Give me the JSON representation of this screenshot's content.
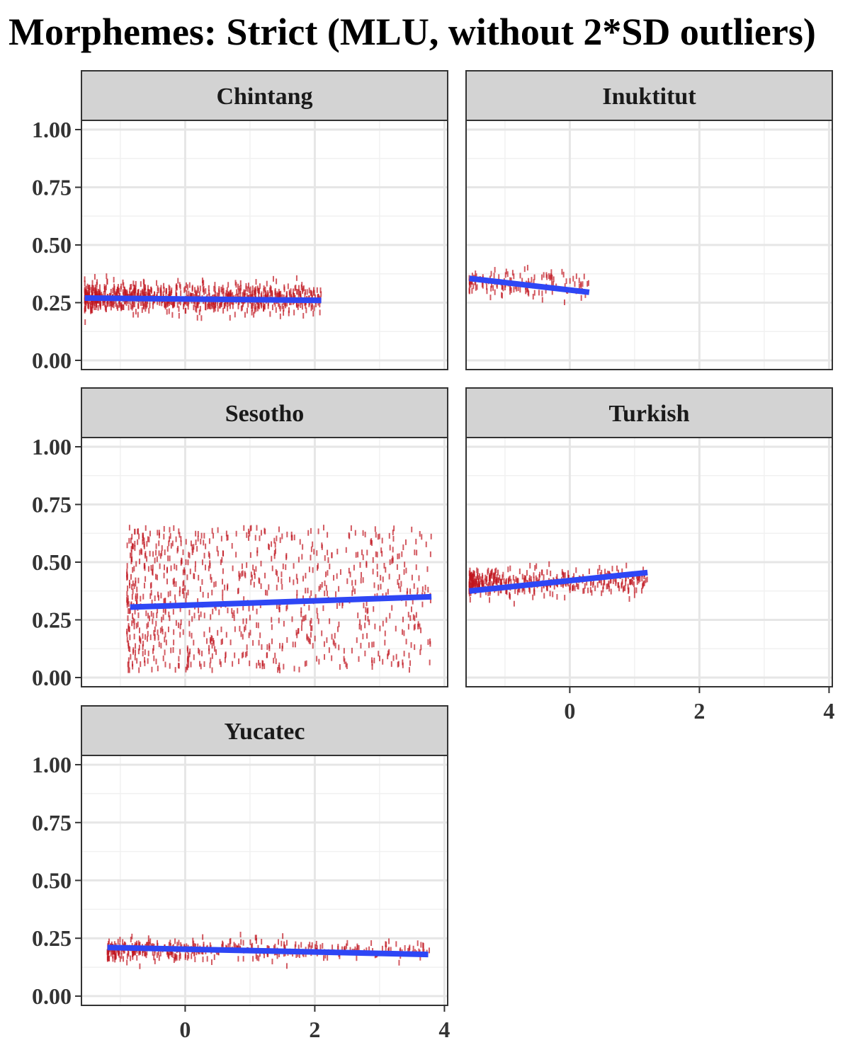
{
  "chart_title": "Morphemes: Strict (MLU, without 2*SD outliers)",
  "colors": {
    "point": "#c0151f",
    "fit": "#2e46f5",
    "strip_fill": "#d3d3d3",
    "border": "#333333",
    "grid_major": "#e6e6e6",
    "grid_minor": "#f1f1f1"
  },
  "chart_data": {
    "type": "scatter",
    "xlim": [
      -1.6,
      4.05
    ],
    "ylim": [
      -0.04,
      1.04
    ],
    "x_ticks": [
      0,
      2,
      4
    ],
    "y_ticks": [
      0.0,
      0.25,
      0.5,
      0.75,
      1.0
    ],
    "y_tick_labels": [
      "0.00",
      "0.25",
      "0.50",
      "0.75",
      "1.00"
    ],
    "x_tick_labels": [
      "0",
      "2",
      "4"
    ],
    "grid": true,
    "panels": [
      {
        "name": "Chintang",
        "x_range": [
          -1.55,
          2.1
        ],
        "y_center": 0.27,
        "y_spread": 0.05,
        "density": "high",
        "fit": [
          [
            -1.55,
            0.27
          ],
          [
            2.1,
            0.26
          ]
        ]
      },
      {
        "name": "Inuktitut",
        "x_range": [
          -1.55,
          0.3
        ],
        "y_center": 0.33,
        "y_spread": 0.05,
        "density": "low",
        "fit": [
          [
            -1.55,
            0.355
          ],
          [
            0.3,
            0.295
          ]
        ]
      },
      {
        "name": "Sesotho",
        "x_range": [
          -0.9,
          3.8
        ],
        "y_center": 0.3,
        "y_spread": 0.22,
        "density": "high",
        "fit": [
          [
            -0.85,
            0.305
          ],
          [
            3.8,
            0.35
          ]
        ]
      },
      {
        "name": "Turkish",
        "x_range": [
          -1.55,
          1.2
        ],
        "y_center": 0.41,
        "y_spread": 0.05,
        "density": "medium",
        "fit": [
          [
            -1.55,
            0.375
          ],
          [
            1.2,
            0.455
          ]
        ]
      },
      {
        "name": "Yucatec",
        "x_range": [
          -1.2,
          3.8
        ],
        "y_center": 0.2,
        "y_spread": 0.035,
        "density": "medium",
        "fit": [
          [
            -1.2,
            0.21
          ],
          [
            3.75,
            0.18
          ]
        ]
      }
    ]
  }
}
